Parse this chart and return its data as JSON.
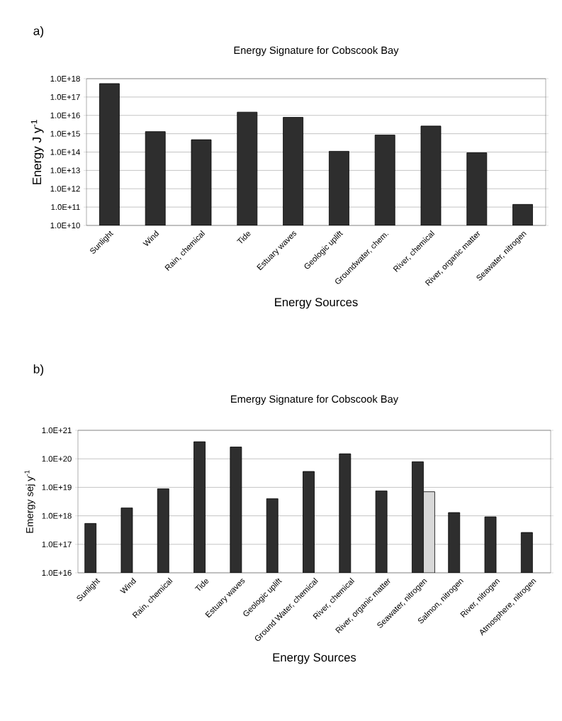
{
  "chart_data": [
    {
      "type": "bar",
      "title": "Energy Signature for Cobscook Bay",
      "xlabel": "Energy Sources",
      "ylabel": "Energy J y$^{-1}$",
      "annotations": [
        "a)"
      ],
      "categories": [
        "Sunlight",
        "Wind",
        "Rain, chemical",
        "Tide",
        "Estuary waves",
        "Geologic uplift",
        "Groundwater, chem.",
        "River, chemical",
        "River, organic matter",
        "Seawater, nitrogen"
      ],
      "values": [
        5.4e+17,
        1300000000000000.0,
        470000000000000.0,
        1.5e+16,
        7800000000000000.0,
        110000000000000.0,
        850000000000000.0,
        2600000000000000.0,
        91000000000000.0,
        140000000000.0
      ],
      "color": "#2e2e2e",
      "log": true,
      "grid": "y",
      "ylim": [
        10000000000.0,
        1e+18
      ],
      "yticks": [
        {
          "value": 10000000000.0,
          "label": "1.0E+10"
        },
        {
          "value": 100000000000.0,
          "label": "1.0E+11"
        },
        {
          "value": 1000000000000.0,
          "label": "1.0E+12"
        },
        {
          "value": 10000000000000.0,
          "label": "1.0E+13"
        },
        {
          "value": 100000000000000.0,
          "label": "1.0E+14"
        },
        {
          "value": 1000000000000000.0,
          "label": "1.0E+15"
        },
        {
          "value": 1e+16,
          "label": "1.0E+16"
        },
        {
          "value": 1e+17,
          "label": "1.0E+17"
        },
        {
          "value": 1e+18,
          "label": "1.0E+18"
        }
      ]
    },
    {
      "type": "bar",
      "title": "Emergy Signature for Cobscook Bay",
      "xlabel": "Energy Sources",
      "ylabel": "Emergy sej y$^{-1}$",
      "annotations": [
        "b)"
      ],
      "categories": [
        "Sunlight",
        "Wind",
        "Rain, chemical",
        "Tide",
        "Estuary waves",
        "Geologic uplift",
        "Ground Water, chemical",
        "River, chemical",
        "River, organic matter",
        "Seawater, nitrogen",
        "Salmon, nitrogen",
        "River, nitrogen",
        "Atmosphere, nitrogen"
      ],
      "series": [
        {
          "color": "#2e2e2e",
          "values": [
            5.4e+17,
            1.9e+18,
            8.9e+18,
            4e+20,
            2.6e+20,
            4e+18,
            3.6e+19,
            1.5e+20,
            7.5e+18,
            7.9e+19,
            1.3e+18,
            9.2e+17,
            2.6e+17
          ]
        },
        {
          "color": "#d8d8d8",
          "values": [
            null,
            null,
            null,
            null,
            null,
            null,
            null,
            null,
            null,
            7e+18,
            null,
            null,
            null
          ]
        }
      ],
      "log": true,
      "grid": "y",
      "ylim": [
        1e+16,
        1e+21
      ],
      "yticks": [
        {
          "value": 1e+16,
          "label": "1.0E+16"
        },
        {
          "value": 1e+17,
          "label": "1.0E+17"
        },
        {
          "value": 1e+18,
          "label": "1.0E+18"
        },
        {
          "value": 1e+19,
          "label": "1.0E+19"
        },
        {
          "value": 1e+20,
          "label": "1.0E+20"
        },
        {
          "value": 1e+21,
          "label": "1.0E+21"
        }
      ]
    }
  ]
}
